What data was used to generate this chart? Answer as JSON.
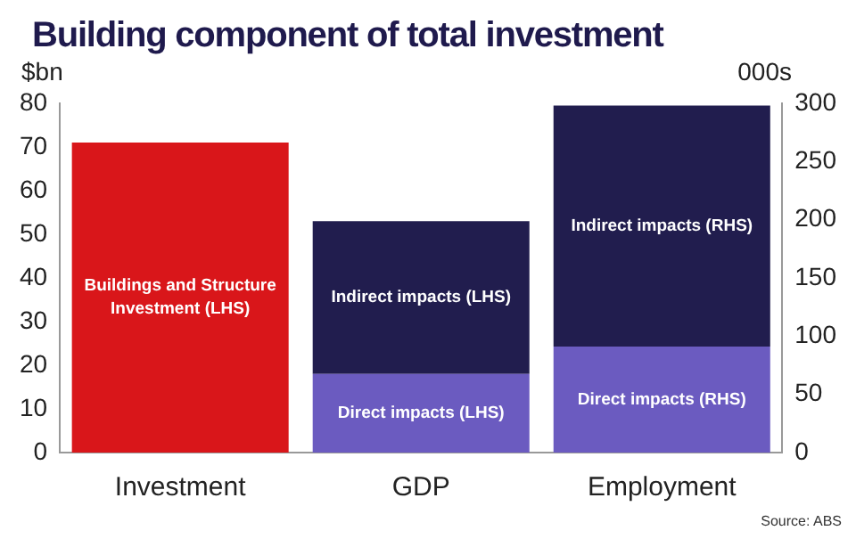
{
  "chart_data": {
    "type": "bar",
    "title": "Building component of total investment",
    "ylabel": "$bn",
    "y2label": "000s",
    "annotations": [
      "Source: ABS"
    ],
    "categories": [
      "Investment",
      "GDP",
      "Employment"
    ],
    "stacked": true,
    "series": [
      {
        "name": "Buildings and Structure Investment (LHS)",
        "color": "#d9161a",
        "values": [
          71,
          null,
          null
        ]
      },
      {
        "name": "Direct impacts (LHS)",
        "color": "#6b5bc0",
        "values": [
          null,
          18,
          null
        ]
      },
      {
        "name": "Indirect impacts (LHS)",
        "color": "#211d4e",
        "values": [
          null,
          35,
          null
        ]
      },
      {
        "name": "Direct impacts (RHS)",
        "color": "#6b5bc0",
        "values": [
          null,
          null,
          91
        ],
        "axis": "y2"
      },
      {
        "name": "Indirect impacts (RHS)",
        "color": "#211d4e",
        "values": [
          null,
          null,
          207
        ],
        "axis": "y2"
      }
    ],
    "ylim": [
      0,
      80
    ],
    "yticks": [
      0,
      10,
      20,
      30,
      40,
      50,
      60,
      70,
      80
    ],
    "y2lim": [
      0,
      300
    ],
    "y2ticks": [
      0,
      50,
      100,
      150,
      200,
      250,
      300
    ]
  }
}
